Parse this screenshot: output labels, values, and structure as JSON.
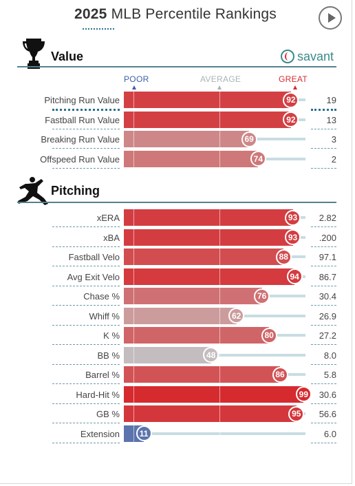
{
  "header": {
    "title_year": "2025",
    "title_rest": " MLB Percentile Rankings"
  },
  "brand": {
    "name": "savant"
  },
  "scale": {
    "poor": "POOR",
    "average": "AVERAGE",
    "great": "GREAT"
  },
  "sections": [
    {
      "title": "Value",
      "icon": "trophy-icon"
    },
    {
      "title": "Pitching",
      "icon": "pitcher-icon"
    }
  ],
  "colors": {
    "great": "#d42b2f",
    "poor": "#3c5ea8",
    "average": "#c9c1c1",
    "accent": "#2a6f8c"
  },
  "chart_data": {
    "type": "bar",
    "xlim": [
      0,
      100
    ],
    "series": [
      {
        "name": "Value",
        "categories": [
          "Pitching Run Value",
          "Fastball Run Value",
          "Breaking Run Value",
          "Offspeed Run Value"
        ],
        "percentiles": [
          92,
          92,
          69,
          74
        ],
        "values": [
          "19",
          "13",
          "3",
          "2"
        ]
      },
      {
        "name": "Pitching",
        "categories": [
          "xERA",
          "xBA",
          "Fastball Velo",
          "Avg Exit Velo",
          "Chase %",
          "Whiff %",
          "K %",
          "BB %",
          "Barrel %",
          "Hard-Hit %",
          "GB %",
          "Extension"
        ],
        "percentiles": [
          93,
          93,
          88,
          94,
          76,
          62,
          80,
          48,
          86,
          99,
          95,
          11
        ],
        "values": [
          "2.82",
          ".200",
          "97.1",
          "86.7",
          "30.4",
          "26.9",
          "27.2",
          "8.0",
          "5.8",
          "30.6",
          "56.6",
          "6.0"
        ]
      }
    ]
  }
}
